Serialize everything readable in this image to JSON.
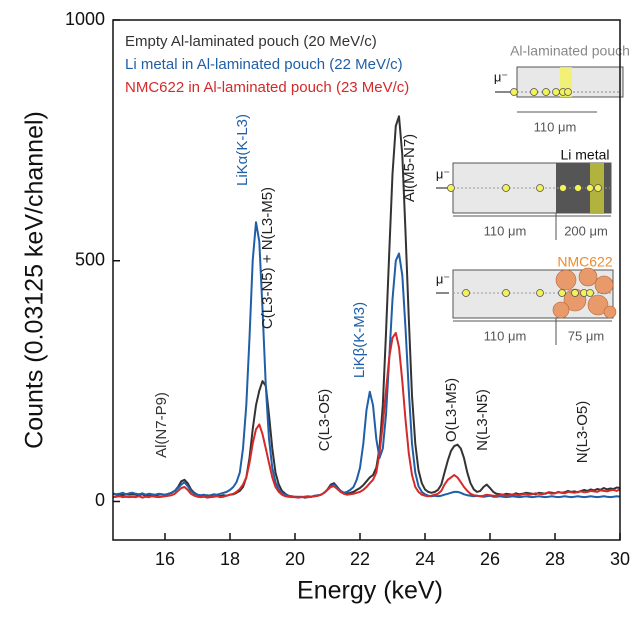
{
  "chart_data": {
    "type": "line",
    "xlabel": "Energy (keV)",
    "ylabel": "Counts (0.03125 keV/channel)",
    "xlim": [
      14.4,
      30
    ],
    "ylim": [
      -80,
      1000
    ],
    "xticks": [
      16,
      18,
      20,
      22,
      24,
      26,
      28,
      30
    ],
    "yticks": [
      0,
      500,
      1000
    ],
    "x": [
      14.4,
      14.5,
      14.6,
      14.7,
      14.8,
      14.9,
      15,
      15.1,
      15.2,
      15.3,
      15.4,
      15.5,
      15.6,
      15.7,
      15.8,
      15.9,
      16,
      16.1,
      16.2,
      16.3,
      16.4,
      16.5,
      16.6,
      16.7,
      16.8,
      16.9,
      17,
      17.1,
      17.2,
      17.3,
      17.4,
      17.5,
      17.6,
      17.7,
      17.8,
      17.9,
      18,
      18.1,
      18.2,
      18.3,
      18.4,
      18.5,
      18.6,
      18.7,
      18.8,
      18.9,
      19,
      19.1,
      19.2,
      19.3,
      19.4,
      19.5,
      19.6,
      19.7,
      19.8,
      19.9,
      20,
      20.1,
      20.2,
      20.3,
      20.4,
      20.5,
      20.6,
      20.7,
      20.8,
      20.9,
      21,
      21.1,
      21.2,
      21.3,
      21.4,
      21.5,
      21.6,
      21.7,
      21.8,
      21.9,
      22,
      22.1,
      22.2,
      22.3,
      22.4,
      22.5,
      22.6,
      22.7,
      22.8,
      22.9,
      23,
      23.1,
      23.2,
      23.3,
      23.4,
      23.5,
      23.6,
      23.7,
      23.8,
      23.9,
      24,
      24.1,
      24.2,
      24.3,
      24.4,
      24.5,
      24.6,
      24.7,
      24.8,
      24.9,
      25,
      25.1,
      25.2,
      25.3,
      25.4,
      25.5,
      25.6,
      25.7,
      25.8,
      25.9,
      26,
      26.1,
      26.2,
      26.3,
      26.4,
      26.5,
      26.6,
      26.7,
      26.8,
      26.9,
      27,
      27.1,
      27.2,
      27.3,
      27.4,
      27.5,
      27.6,
      27.7,
      27.8,
      27.9,
      28,
      28.1,
      28.2,
      28.3,
      28.4,
      28.5,
      28.6,
      28.7,
      28.8,
      28.9,
      29,
      29.1,
      29.2,
      29.3,
      29.4,
      29.5,
      29.6,
      29.7,
      29.8,
      29.9,
      30
    ],
    "series": [
      {
        "name": "Empty Al-laminated pouch (20 MeV/c)",
        "color": "#333333",
        "values": [
          16,
          14,
          15,
          13,
          15,
          14,
          15,
          14,
          13,
          15,
          12,
          14,
          13,
          12,
          14,
          15,
          13,
          16,
          18,
          22,
          30,
          42,
          45,
          38,
          25,
          18,
          14,
          12,
          11,
          13,
          12,
          10,
          12,
          11,
          13,
          12,
          14,
          15,
          18,
          22,
          30,
          50,
          90,
          150,
          200,
          230,
          250,
          240,
          180,
          110,
          60,
          35,
          22,
          16,
          12,
          10,
          9,
          9,
          10,
          8,
          9,
          10,
          11,
          12,
          14,
          18,
          25,
          35,
          38,
          30,
          22,
          18,
          16,
          18,
          20,
          24,
          28,
          34,
          42,
          50,
          55,
          70,
          110,
          200,
          350,
          520,
          680,
          780,
          800,
          720,
          560,
          380,
          220,
          120,
          65,
          38,
          25,
          20,
          18,
          20,
          24,
          35,
          60,
          85,
          105,
          115,
          118,
          110,
          90,
          60,
          38,
          25,
          20,
          22,
          30,
          35,
          28,
          20,
          16,
          15,
          14,
          16,
          15,
          14,
          17,
          15,
          16,
          18,
          17,
          16,
          15,
          18,
          17,
          16,
          19,
          18,
          17,
          20,
          18,
          19,
          22,
          20,
          21,
          19,
          22,
          24,
          22,
          25,
          23,
          26,
          24,
          28,
          25,
          27,
          26,
          29,
          28
        ]
      },
      {
        "name": "Li metal in Al-laminated pouch (22 MeV/c)",
        "color": "#1f5fa8",
        "values": [
          17,
          15,
          16,
          18,
          15,
          17,
          18,
          16,
          15,
          17,
          14,
          16,
          15,
          14,
          16,
          15,
          14,
          16,
          18,
          22,
          28,
          35,
          40,
          32,
          22,
          16,
          14,
          13,
          14,
          12,
          13,
          15,
          14,
          16,
          18,
          20,
          24,
          30,
          40,
          60,
          110,
          200,
          340,
          500,
          580,
          540,
          400,
          240,
          130,
          70,
          40,
          25,
          18,
          14,
          12,
          11,
          10,
          10,
          9,
          10,
          11,
          10,
          12,
          13,
          14,
          18,
          24,
          32,
          35,
          28,
          22,
          18,
          20,
          24,
          30,
          45,
          70,
          120,
          190,
          228,
          200,
          130,
          90,
          110,
          180,
          300,
          420,
          500,
          515,
          470,
          360,
          230,
          120,
          60,
          32,
          20,
          15,
          12,
          11,
          12,
          11,
          12,
          14,
          16,
          18,
          20,
          20,
          18,
          15,
          13,
          12,
          11,
          12,
          11,
          10,
          11,
          12,
          10,
          10,
          11,
          10,
          9,
          10,
          11,
          10,
          9,
          10,
          11,
          10,
          9,
          10,
          11,
          10,
          9,
          10,
          11,
          10,
          9,
          10,
          11,
          10,
          9,
          10,
          11,
          10,
          9,
          10,
          11,
          10,
          9,
          10,
          11,
          10,
          9,
          10,
          11,
          10
        ]
      },
      {
        "name": "NMC622 in Al-laminated pouch (23 MeV/c)",
        "color": "#d42a2a",
        "values": [
          9,
          10,
          11,
          9,
          10,
          9,
          10,
          9,
          11,
          8,
          10,
          9,
          11,
          10,
          9,
          10,
          11,
          12,
          13,
          16,
          22,
          28,
          30,
          24,
          16,
          12,
          10,
          9,
          10,
          8,
          9,
          10,
          11,
          9,
          10,
          12,
          14,
          16,
          20,
          26,
          35,
          50,
          80,
          120,
          150,
          160,
          140,
          110,
          80,
          50,
          30,
          20,
          14,
          11,
          10,
          9,
          9,
          8,
          9,
          10,
          9,
          10,
          11,
          12,
          14,
          18,
          24,
          30,
          32,
          26,
          20,
          16,
          14,
          15,
          16,
          18,
          20,
          24,
          30,
          38,
          45,
          60,
          100,
          160,
          230,
          300,
          340,
          350,
          320,
          250,
          170,
          100,
          55,
          30,
          20,
          14,
          12,
          11,
          12,
          14,
          16,
          22,
          35,
          45,
          50,
          55,
          50,
          40,
          30,
          22,
          16,
          13,
          12,
          11,
          12,
          14,
          13,
          12,
          12,
          13,
          14,
          12,
          13,
          15,
          14,
          13,
          15,
          16,
          14,
          15,
          17,
          16,
          15,
          17,
          18,
          16,
          17,
          19,
          18,
          17,
          20,
          19,
          18,
          20,
          21,
          19,
          20,
          22,
          21,
          20,
          23,
          22,
          21,
          23,
          24,
          22,
          25
        ]
      }
    ],
    "annotations": [
      {
        "text": "Al(N7-P9)",
        "color": "#333333"
      },
      {
        "text": "LiKα(K-L3)",
        "color": "#1f5fa8"
      },
      {
        "text": "C(L3-N5) + N(L3-M5)",
        "color": "#222222"
      },
      {
        "text": "C(L3-O5)",
        "color": "#222222"
      },
      {
        "text": "LiKβ(K-M3)",
        "color": "#1f5fa8"
      },
      {
        "text": "Al(M5-N7)",
        "color": "#222222"
      },
      {
        "text": "O(L3-M5)",
        "color": "#222222"
      },
      {
        "text": "N(L3-N5)",
        "color": "#222222"
      },
      {
        "text": "N(L3-O5)",
        "color": "#222222"
      }
    ],
    "insets": [
      {
        "title": "Al-laminated pouch",
        "title_color": "#888888",
        "muon": "μ⁻",
        "dims": [
          "110 μm"
        ]
      },
      {
        "title": "Li metal",
        "title_color": "#111111",
        "muon": "μ⁻",
        "dims": [
          "110 μm",
          "200 μm"
        ]
      },
      {
        "title": "NMC622",
        "title_color": "#f08a2c",
        "muon": "μ⁻",
        "dims": [
          "110 μm",
          "75 μm"
        ]
      }
    ]
  }
}
